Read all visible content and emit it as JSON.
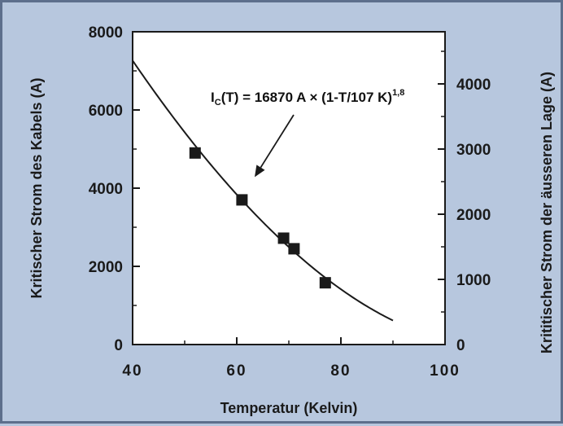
{
  "chart_data": {
    "type": "scatter",
    "xlabel": "Temperatur  (Kelvin)",
    "ylabel_left": "Kritischer Strom des Kabels (A)",
    "ylabel_right": "Krititischer Strom der äusseren Lage (A)",
    "xlim": [
      40,
      100
    ],
    "ylim_left": [
      0,
      8000
    ],
    "ylim_right": [
      0,
      4800
    ],
    "x_ticks": [
      40,
      60,
      80,
      100
    ],
    "y_ticks_left": [
      0,
      2000,
      4000,
      6000,
      8000
    ],
    "y_ticks_right": [
      0,
      1000,
      2000,
      3000,
      4000
    ],
    "grid": false,
    "series": [
      {
        "type": "scatter",
        "marker": "square",
        "x": [
          52,
          61,
          69,
          71,
          77
        ],
        "y": [
          4900,
          3700,
          2720,
          2450,
          1580
        ]
      },
      {
        "type": "line",
        "formula": {
          "coefficient": 16870,
          "tc": 107,
          "exponent": 1.8
        },
        "x_range": [
          40,
          90
        ]
      }
    ],
    "annotation": {
      "prefix": "I",
      "sub": "C",
      "body": "(T) = 16870 A × (1-T/107 K)",
      "sup": "1,8",
      "arrow_to": {
        "x": 62.5,
        "y": 4200
      }
    },
    "colors": {
      "background": "#b7c7de",
      "plot_area": "#ffffff",
      "ink": "#1a1a1a"
    }
  }
}
